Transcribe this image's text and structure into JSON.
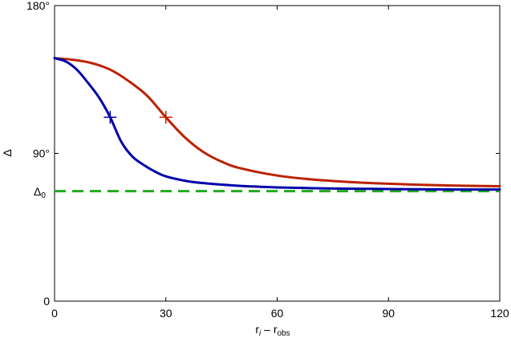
{
  "chart_data": {
    "type": "line",
    "xlabel": "r_i – r_obs",
    "ylabel": "Δ",
    "xlim": [
      0,
      120
    ],
    "ylim": [
      0,
      180
    ],
    "x_ticks": [
      0,
      30,
      60,
      90,
      120
    ],
    "x_tick_labels": [
      "0",
      "30",
      "60",
      "90",
      "120"
    ],
    "y_ticks": [
      0,
      90,
      180
    ],
    "y_tick_labels": [
      "0",
      "90°",
      "180°"
    ],
    "reference_line": {
      "label": "Δ",
      "label_sub": "0",
      "y": 67,
      "color": "#22aa22",
      "style": "dashed"
    },
    "series": [
      {
        "color": "#0000aa",
        "x": [
          0,
          3,
          6,
          9,
          12,
          15,
          18,
          21,
          24,
          27,
          30,
          36,
          42,
          48,
          54,
          60,
          70,
          80,
          90,
          100,
          110,
          120
        ],
        "y": [
          148,
          146,
          141,
          133,
          124,
          112,
          97,
          88,
          83,
          79,
          76,
          73,
          71.5,
          70.5,
          69.8,
          69.3,
          68.8,
          68.5,
          68.3,
          68.1,
          68.0,
          68.0
        ],
        "marker": {
          "x": 15,
          "y": 112
        }
      },
      {
        "color": "#bb2200",
        "x": [
          0,
          5,
          10,
          15,
          20,
          25,
          30,
          35,
          40,
          45,
          50,
          60,
          70,
          80,
          90,
          100,
          110,
          120
        ],
        "y": [
          148,
          147,
          145,
          141,
          134,
          125,
          112,
          100,
          91,
          85,
          81,
          76.5,
          74,
          72.5,
          71.5,
          70.8,
          70.3,
          70.0
        ],
        "marker": {
          "x": 30,
          "y": 112
        }
      }
    ]
  }
}
